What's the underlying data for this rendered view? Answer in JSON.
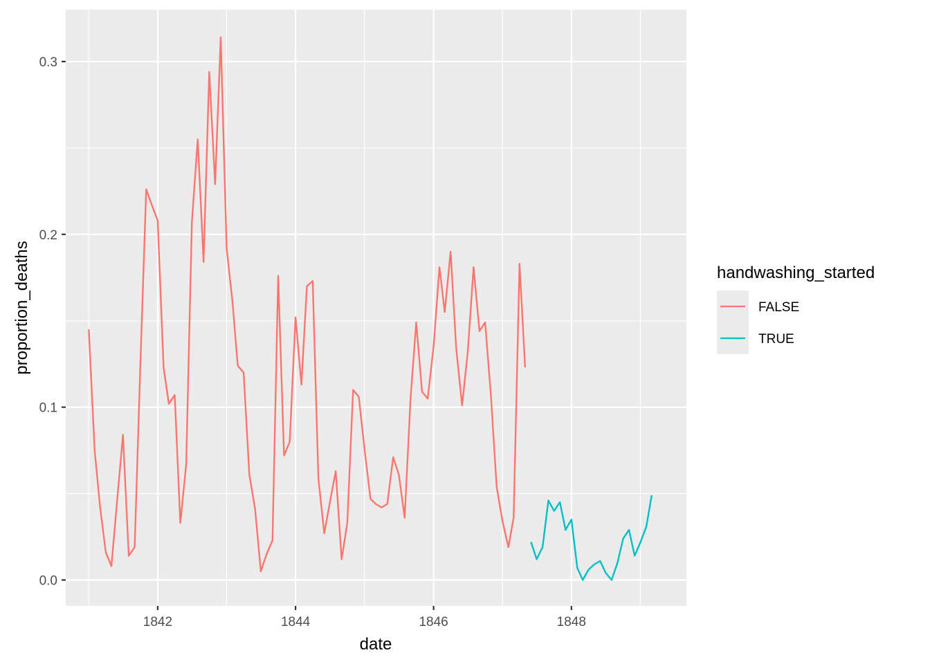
{
  "chart_data": {
    "type": "line",
    "xlabel": "date",
    "ylabel": "proportion_deaths",
    "xlim": [
      "1840-09-01",
      "1849-09-01"
    ],
    "ylim": [
      -0.015,
      0.33
    ],
    "x_ticks": [
      {
        "value": "1842-01-01",
        "label": "1842"
      },
      {
        "value": "1844-01-01",
        "label": "1844"
      },
      {
        "value": "1846-01-01",
        "label": "1846"
      },
      {
        "value": "1848-01-01",
        "label": "1848"
      }
    ],
    "y_ticks": [
      {
        "value": 0.0,
        "label": "0.0"
      },
      {
        "value": 0.1,
        "label": "0.1"
      },
      {
        "value": 0.2,
        "label": "0.2"
      },
      {
        "value": 0.3,
        "label": "0.3"
      }
    ],
    "grid": true,
    "legend": {
      "title": "handwashing_started",
      "position": "right",
      "entries": [
        "FALSE",
        "TRUE"
      ]
    },
    "series": [
      {
        "name": "FALSE",
        "color": "#F8766D",
        "x": [
          "1841-01-01",
          "1841-02-01",
          "1841-03-01",
          "1841-04-01",
          "1841-05-01",
          "1841-06-01",
          "1841-07-01",
          "1841-08-01",
          "1841-09-01",
          "1841-10-01",
          "1841-11-01",
          "1841-12-01",
          "1842-01-01",
          "1842-02-01",
          "1842-03-01",
          "1842-04-01",
          "1842-05-01",
          "1842-06-01",
          "1842-07-01",
          "1842-08-01",
          "1842-09-01",
          "1842-10-01",
          "1842-11-01",
          "1842-12-01",
          "1843-01-01",
          "1843-02-01",
          "1843-03-01",
          "1843-04-01",
          "1843-05-01",
          "1843-06-01",
          "1843-07-01",
          "1843-08-01",
          "1843-09-01",
          "1843-10-01",
          "1843-11-01",
          "1843-12-01",
          "1844-01-01",
          "1844-02-01",
          "1844-03-01",
          "1844-04-01",
          "1844-05-01",
          "1844-06-01",
          "1844-07-01",
          "1844-08-01",
          "1844-09-01",
          "1844-10-01",
          "1844-11-01",
          "1844-12-01",
          "1845-01-01",
          "1845-02-01",
          "1845-03-01",
          "1845-04-01",
          "1845-05-01",
          "1845-06-01",
          "1845-07-01",
          "1845-08-01",
          "1845-09-01",
          "1845-10-01",
          "1845-11-01",
          "1845-12-01",
          "1846-01-01",
          "1846-02-01",
          "1846-03-01",
          "1846-04-01",
          "1846-05-01",
          "1846-06-01",
          "1846-07-01",
          "1846-08-01",
          "1846-09-01",
          "1846-10-01",
          "1846-11-01",
          "1846-12-01",
          "1847-01-01",
          "1847-02-01",
          "1847-03-01",
          "1847-04-01",
          "1847-05-01"
        ],
        "values": [
          0.145,
          0.075,
          0.043,
          0.016,
          0.008,
          0.047,
          0.084,
          0.014,
          0.019,
          0.124,
          0.226,
          0.217,
          0.208,
          0.123,
          0.102,
          0.107,
          0.033,
          0.067,
          0.207,
          0.255,
          0.184,
          0.294,
          0.229,
          0.314,
          0.192,
          0.161,
          0.124,
          0.12,
          0.061,
          0.041,
          0.005,
          0.015,
          0.023,
          0.176,
          0.072,
          0.08,
          0.152,
          0.113,
          0.17,
          0.173,
          0.059,
          0.027,
          0.045,
          0.063,
          0.012,
          0.033,
          0.11,
          0.106,
          0.075,
          0.047,
          0.044,
          0.042,
          0.044,
          0.071,
          0.061,
          0.036,
          0.105,
          0.149,
          0.109,
          0.105,
          0.135,
          0.181,
          0.155,
          0.19,
          0.134,
          0.101,
          0.132,
          0.181,
          0.144,
          0.149,
          0.106,
          0.054,
          0.034,
          0.019,
          0.036,
          0.183,
          0.123
        ]
      },
      {
        "name": "TRUE",
        "color": "#00BFC4",
        "x": [
          "1847-06-01",
          "1847-07-01",
          "1847-08-01",
          "1847-09-01",
          "1847-10-01",
          "1847-11-01",
          "1847-12-01",
          "1848-01-01",
          "1848-02-01",
          "1848-03-01",
          "1848-04-01",
          "1848-05-01",
          "1848-06-01",
          "1848-07-01",
          "1848-08-01",
          "1848-09-01",
          "1848-10-01",
          "1848-11-01",
          "1848-12-01",
          "1849-01-01",
          "1849-02-01",
          "1849-03-01"
        ],
        "values": [
          0.022,
          0.012,
          0.019,
          0.046,
          0.04,
          0.045,
          0.029,
          0.035,
          0.007,
          0.0,
          0.006,
          0.009,
          0.011,
          0.004,
          0.0,
          0.01,
          0.024,
          0.029,
          0.014,
          0.022,
          0.031,
          0.049
        ]
      }
    ]
  }
}
